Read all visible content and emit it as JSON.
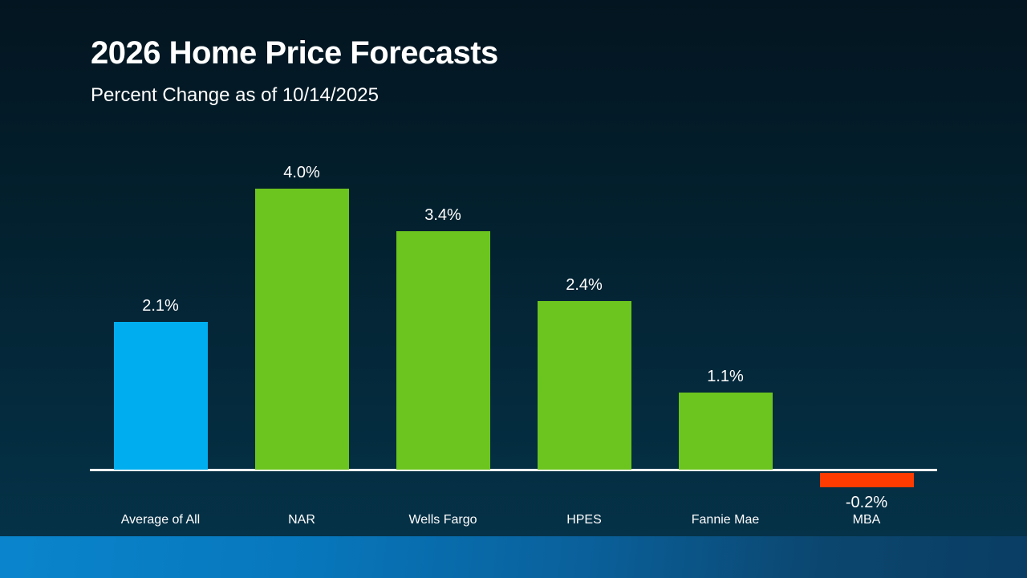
{
  "slide": {
    "title": "2026 Home Price Forecasts",
    "subtitle": "Percent Change as of 10/14/2025"
  },
  "colors": {
    "background_top": "#031520",
    "background_bottom": "#05344b",
    "bar_blue": "#00aeef",
    "bar_green": "#6cc41e",
    "bar_orange": "#fe3b01",
    "axis_line": "#ffffff",
    "text": "#ffffff",
    "band_left": "#0a85cd",
    "band_right": "#0a3d63"
  },
  "chart_data": {
    "type": "bar",
    "title": "2026 Home Price Forecasts",
    "subtitle": "Percent Change as of 10/14/2025",
    "xlabel": "",
    "ylabel": "",
    "ylim": [
      -0.5,
      4.5
    ],
    "grid": false,
    "legend": false,
    "categories": [
      "Average of All",
      "NAR",
      "Wells Fargo",
      "HPES",
      "Fannie Mae",
      "MBA"
    ],
    "values": [
      2.1,
      4.0,
      3.4,
      2.4,
      1.1,
      -0.2
    ],
    "bars": [
      {
        "category": "Average of All",
        "value": 2.1,
        "label": "2.1%",
        "color": "#00aeef"
      },
      {
        "category": "NAR",
        "value": 4.0,
        "label": "4.0%",
        "color": "#6cc41e"
      },
      {
        "category": "Wells Fargo",
        "value": 3.4,
        "label": "3.4%",
        "color": "#6cc41e"
      },
      {
        "category": "HPES",
        "value": 2.4,
        "label": "2.4%",
        "color": "#6cc41e"
      },
      {
        "category": "Fannie Mae",
        "value": 1.1,
        "label": "1.1%",
        "color": "#6cc41e"
      },
      {
        "category": "MBA",
        "value": -0.2,
        "label": "-0.2%",
        "color": "#fe3b01"
      }
    ]
  }
}
